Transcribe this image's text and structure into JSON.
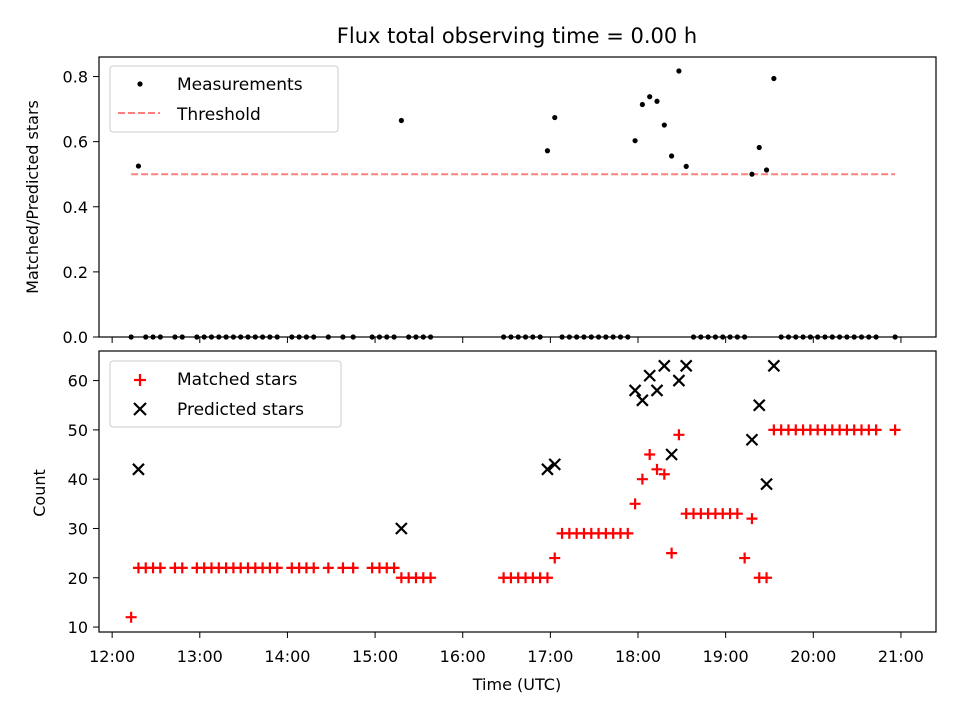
{
  "chart_data": [
    {
      "type": "scatter",
      "title": "Flux total observing time = 0.00 h",
      "xlabel": "",
      "ylabel": "Matched/Predicted stars",
      "ylim": [
        0.0,
        0.86
      ],
      "yticks": [
        0.0,
        0.2,
        0.4,
        0.6,
        0.8
      ],
      "ytick_labels": [
        "0.0",
        "0.2",
        "0.4",
        "0.6",
        "0.8"
      ],
      "legend": [
        "Measurements",
        "Threshold"
      ],
      "legend_position": "top-left",
      "grid": false,
      "series": [
        {
          "name": "Measurements",
          "marker": "dot",
          "color": "#000000",
          "x": [
            "12:13",
            "12:18",
            "12:23",
            "12:28",
            "12:33",
            "12:43",
            "12:48",
            "12:58",
            "13:03",
            "13:08",
            "13:13",
            "13:18",
            "13:23",
            "13:28",
            "13:33",
            "13:38",
            "13:43",
            "13:48",
            "13:53",
            "14:03",
            "14:08",
            "14:13",
            "14:18",
            "14:28",
            "14:38",
            "14:45",
            "14:58",
            "15:03",
            "15:08",
            "15:13",
            "15:18",
            "15:23",
            "15:28",
            "15:33",
            "15:38",
            "16:28",
            "16:33",
            "16:38",
            "16:43",
            "16:48",
            "16:53",
            "16:58",
            "17:03",
            "17:08",
            "17:13",
            "17:18",
            "17:23",
            "17:28",
            "17:33",
            "17:38",
            "17:43",
            "17:48",
            "17:53",
            "17:58",
            "18:03",
            "18:08",
            "18:13",
            "18:18",
            "18:23",
            "18:28",
            "18:33",
            "18:38",
            "18:43",
            "18:48",
            "18:53",
            "18:58",
            "19:03",
            "19:08",
            "19:13",
            "19:18",
            "19:23",
            "19:28",
            "19:33",
            "19:38",
            "19:43",
            "19:48",
            "19:53",
            "19:58",
            "20:03",
            "20:08",
            "20:13",
            "20:18",
            "20:23",
            "20:28",
            "20:33",
            "20:38",
            "20:43",
            "20:56"
          ],
          "y": [
            0.0,
            0.525,
            0.0,
            0.0,
            0.0,
            0.0,
            0.0,
            0.0,
            0.0,
            0.0,
            0.0,
            0.0,
            0.0,
            0.0,
            0.0,
            0.0,
            0.0,
            0.0,
            0.0,
            0.0,
            0.0,
            0.0,
            0.0,
            0.0,
            0.0,
            0.0,
            0.0,
            0.0,
            0.0,
            0.0,
            0.665,
            0.0,
            0.0,
            0.0,
            0.0,
            0.0,
            0.0,
            0.0,
            0.0,
            0.0,
            0.0,
            0.572,
            0.674,
            0.0,
            0.0,
            0.0,
            0.0,
            0.0,
            0.0,
            0.0,
            0.0,
            0.0,
            0.0,
            0.603,
            0.714,
            0.738,
            0.724,
            0.651,
            0.556,
            0.817,
            0.524,
            0.0,
            0.0,
            0.0,
            0.0,
            0.0,
            0.0,
            0.0,
            0.0,
            0.5,
            0.582,
            0.513,
            0.794,
            0.0,
            0.0,
            0.0,
            0.0,
            0.0,
            0.0,
            0.0,
            0.0,
            0.0,
            0.0,
            0.0,
            0.0,
            0.0,
            0.0,
            0.0
          ]
        },
        {
          "name": "Threshold",
          "marker": "dashed-line",
          "color": "#ff7f7f",
          "x": [
            "12:13",
            "20:56"
          ],
          "y": [
            0.5,
            0.5
          ]
        }
      ]
    },
    {
      "type": "scatter",
      "title": "",
      "xlabel": "Time (UTC)",
      "ylabel": "Count",
      "ylim": [
        9,
        66
      ],
      "yticks": [
        10,
        20,
        30,
        40,
        50,
        60
      ],
      "ytick_labels": [
        "10",
        "20",
        "30",
        "40",
        "50",
        "60"
      ],
      "xticks": [
        "12:00",
        "13:00",
        "14:00",
        "15:00",
        "16:00",
        "17:00",
        "18:00",
        "19:00",
        "20:00",
        "21:00"
      ],
      "xlim": [
        "11:51",
        "21:24"
      ],
      "legend": [
        "Matched stars",
        "Predicted stars"
      ],
      "legend_position": "top-left",
      "grid": false,
      "series": [
        {
          "name": "Matched stars",
          "marker": "plus",
          "color": "#ff0000",
          "x": [
            "12:13",
            "12:18",
            "12:23",
            "12:28",
            "12:33",
            "12:43",
            "12:48",
            "12:58",
            "13:03",
            "13:08",
            "13:13",
            "13:18",
            "13:23",
            "13:28",
            "13:33",
            "13:38",
            "13:43",
            "13:48",
            "13:53",
            "14:03",
            "14:08",
            "14:13",
            "14:18",
            "14:28",
            "14:38",
            "14:45",
            "14:58",
            "15:03",
            "15:08",
            "15:13",
            "15:18",
            "15:23",
            "15:28",
            "15:33",
            "15:38",
            "16:28",
            "16:33",
            "16:38",
            "16:43",
            "16:48",
            "16:53",
            "16:58",
            "17:03",
            "17:08",
            "17:13",
            "17:18",
            "17:23",
            "17:28",
            "17:33",
            "17:38",
            "17:43",
            "17:48",
            "17:53",
            "17:58",
            "18:03",
            "18:08",
            "18:13",
            "18:18",
            "18:23",
            "18:28",
            "18:33",
            "18:38",
            "18:43",
            "18:48",
            "18:53",
            "18:58",
            "19:03",
            "19:08",
            "19:13",
            "19:18",
            "19:23",
            "19:28",
            "19:33",
            "19:38",
            "19:43",
            "19:48",
            "19:53",
            "19:58",
            "20:03",
            "20:08",
            "20:13",
            "20:18",
            "20:23",
            "20:28",
            "20:33",
            "20:38",
            "20:43",
            "20:56"
          ],
          "y": [
            12,
            22,
            22,
            22,
            22,
            22,
            22,
            22,
            22,
            22,
            22,
            22,
            22,
            22,
            22,
            22,
            22,
            22,
            22,
            22,
            22,
            22,
            22,
            22,
            22,
            22,
            22,
            22,
            22,
            22,
            20,
            20,
            20,
            20,
            20,
            20,
            20,
            20,
            20,
            20,
            20,
            20,
            24,
            29,
            29,
            29,
            29,
            29,
            29,
            29,
            29,
            29,
            29,
            35,
            40,
            45,
            42,
            41,
            25,
            49,
            33,
            33,
            33,
            33,
            33,
            33,
            33,
            33,
            24,
            32,
            20,
            20,
            50,
            50,
            50,
            50,
            50,
            50,
            50,
            50,
            50,
            50,
            50,
            50,
            50,
            50,
            50,
            50
          ]
        },
        {
          "name": "Predicted stars",
          "marker": "x",
          "color": "#000000",
          "x": [
            "12:18",
            "15:18",
            "16:58",
            "17:03",
            "17:58",
            "18:03",
            "18:08",
            "18:13",
            "18:18",
            "18:23",
            "18:28",
            "18:33",
            "19:18",
            "19:23",
            "19:28",
            "19:33"
          ],
          "y": [
            42,
            30,
            42,
            43,
            58,
            56,
            61,
            58,
            63,
            45,
            60,
            63,
            48,
            55,
            39,
            63
          ]
        }
      ]
    }
  ]
}
